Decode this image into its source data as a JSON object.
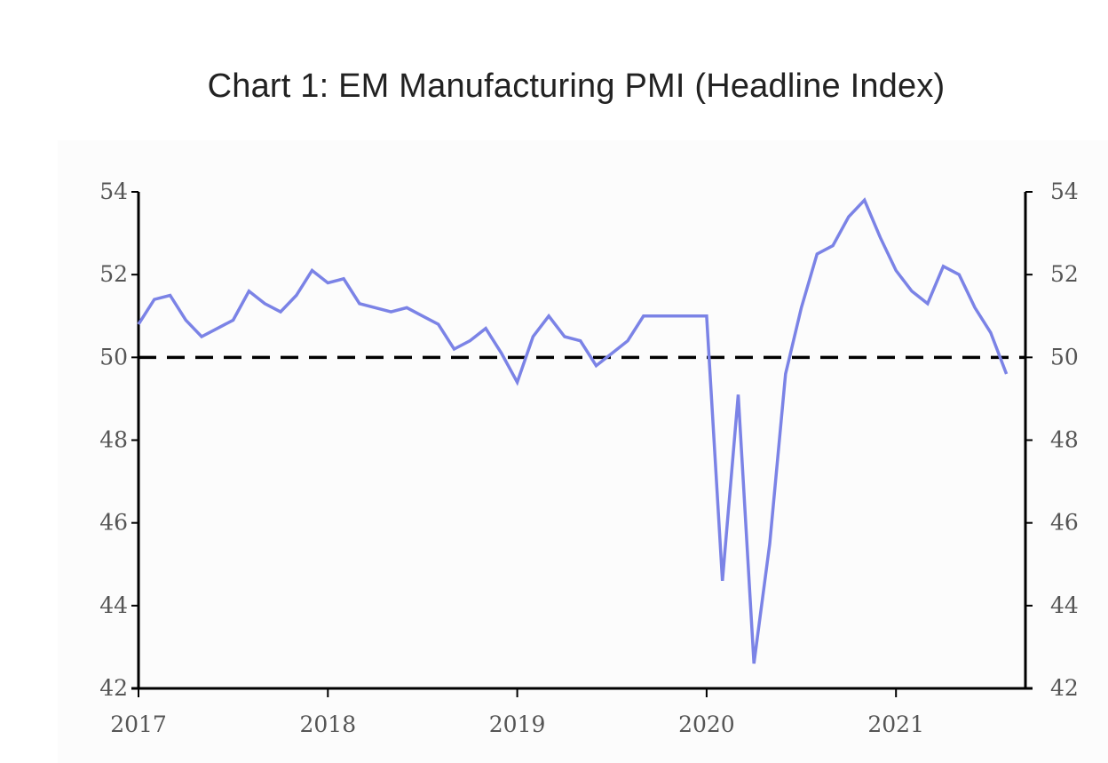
{
  "title": "Chart 1: EM Manufacturing PMI (Headline Index)",
  "chart_data": {
    "type": "line",
    "title": "Chart 1: EM Manufacturing PMI (Headline Index)",
    "xlabel": "",
    "ylabel": "",
    "ylim": [
      42,
      54
    ],
    "yticks": [
      "42",
      "44",
      "46",
      "48",
      "50",
      "52",
      "54"
    ],
    "yticks_right": [
      "42",
      "44",
      "46",
      "48",
      "50",
      "52",
      "54"
    ],
    "xticks": [
      "2017",
      "2018",
      "2019",
      "2020",
      "2021"
    ],
    "reference_line": {
      "y": 50,
      "style": "dashed",
      "color": "#000000"
    },
    "line_color": "#7b83e6",
    "grid": false,
    "series": [
      {
        "x": [
          "2017-01",
          "2017-02",
          "2017-03",
          "2017-04",
          "2017-05",
          "2017-06",
          "2017-07",
          "2017-08",
          "2017-09",
          "2017-10",
          "2017-11",
          "2017-12",
          "2018-01",
          "2018-02",
          "2018-03",
          "2018-04",
          "2018-05",
          "2018-06",
          "2018-07",
          "2018-08",
          "2018-09",
          "2018-10",
          "2018-11",
          "2018-12",
          "2019-01",
          "2019-02",
          "2019-03",
          "2019-04",
          "2019-05",
          "2019-06",
          "2019-07",
          "2019-08",
          "2019-09",
          "2019-10",
          "2019-11",
          "2019-12",
          "2020-01",
          "2020-02",
          "2020-03",
          "2020-04",
          "2020-05",
          "2020-06",
          "2020-07",
          "2020-08",
          "2020-09",
          "2020-10",
          "2020-11",
          "2020-12",
          "2021-01",
          "2021-02",
          "2021-03",
          "2021-04",
          "2021-05",
          "2021-06",
          "2021-07",
          "2021-08"
        ],
        "values": [
          50.8,
          51.4,
          51.5,
          50.9,
          50.5,
          50.7,
          50.9,
          51.6,
          51.3,
          51.1,
          51.5,
          52.1,
          51.8,
          51.9,
          51.3,
          51.2,
          51.1,
          51.2,
          51.0,
          50.8,
          50.2,
          50.4,
          50.7,
          50.1,
          49.4,
          50.5,
          51.0,
          50.5,
          50.4,
          49.8,
          50.1,
          50.4,
          51.0,
          51.0,
          51.0,
          51.0,
          51.0,
          44.6,
          49.1,
          42.6,
          45.5,
          49.6,
          51.2,
          52.5,
          52.7,
          53.4,
          53.8,
          52.9,
          52.1,
          51.6,
          51.3,
          52.2,
          52.0,
          51.2,
          50.6,
          49.6
        ]
      }
    ]
  }
}
